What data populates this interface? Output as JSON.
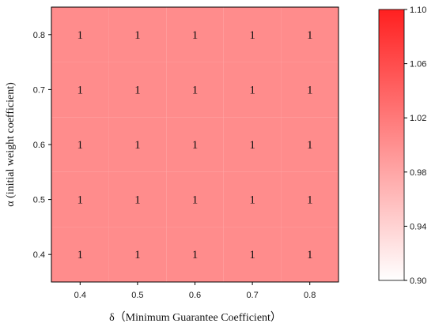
{
  "chart_data": {
    "type": "heatmap",
    "x": [
      0.4,
      0.5,
      0.6,
      0.7,
      0.8
    ],
    "y": [
      0.4,
      0.5,
      0.6,
      0.7,
      0.8
    ],
    "x_tick_labels": [
      "0.4",
      "0.5",
      "0.6",
      "0.7",
      "0.8"
    ],
    "y_tick_labels": [
      "0.4",
      "0.5",
      "0.6",
      "0.7",
      "0.8"
    ],
    "values": [
      [
        1,
        1,
        1,
        1,
        1
      ],
      [
        1,
        1,
        1,
        1,
        1
      ],
      [
        1,
        1,
        1,
        1,
        1
      ],
      [
        1,
        1,
        1,
        1,
        1
      ],
      [
        1,
        1,
        1,
        1,
        1
      ]
    ],
    "cell_labels": [
      "1",
      "1",
      "1",
      "1",
      "1"
    ],
    "xlabel": "δ（Minimum Guarantee Coefficient）",
    "ylabel": "α (initial weight coefficient)",
    "xlim": [
      0.35,
      0.85
    ],
    "ylim": [
      0.35,
      0.85
    ],
    "colorbar": {
      "range": [
        0.9,
        1.1
      ],
      "ticks": [
        0.9,
        0.94,
        0.98,
        1.02,
        1.06,
        1.1
      ],
      "tick_labels": [
        "0.90",
        "0.94",
        "0.98",
        "1.02",
        "1.06",
        "1.10"
      ],
      "color_low": "#ffffff",
      "color_high": "#ff2020"
    },
    "cell_color": "#ff8c8c",
    "grid": false
  }
}
